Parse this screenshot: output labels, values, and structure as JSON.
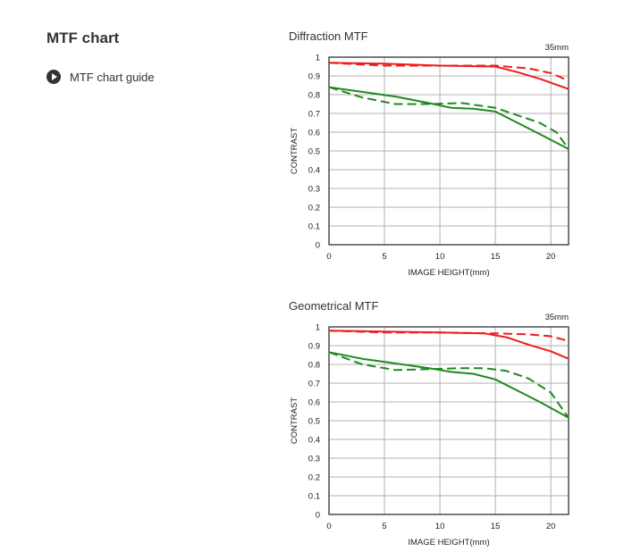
{
  "page": {
    "heading": "MTF chart",
    "guide_link_label": "MTF chart guide",
    "guide_icon": "play-circle-icon"
  },
  "colors": {
    "red_series": "#ee1c1c",
    "green_series": "#1e8a1e",
    "grid": "#b0b0b0",
    "frame": "#222222"
  },
  "chart_data": [
    {
      "type": "line",
      "title": "Diffraction MTF",
      "focal_length_label": "35mm",
      "xlabel": "IMAGE HEIGHT(mm)",
      "ylabel": "CONTRAST",
      "xlim": [
        0,
        21.6
      ],
      "ylim": [
        0,
        1
      ],
      "x_ticks": [
        "0",
        "5",
        "10",
        "15",
        "20"
      ],
      "y_ticks": [
        "0",
        "0.1",
        "0.2",
        "0.3",
        "0.4",
        "0.5",
        "0.6",
        "0.7",
        "0.8",
        "0.9",
        "1"
      ],
      "grid": true,
      "series": [
        {
          "color": "red",
          "style": "solid",
          "points": [
            [
              0,
              0.97
            ],
            [
              5,
              0.965
            ],
            [
              10,
              0.955
            ],
            [
              15,
              0.95
            ],
            [
              17,
              0.92
            ],
            [
              19,
              0.885
            ],
            [
              21.6,
              0.83
            ]
          ]
        },
        {
          "color": "red",
          "style": "dashed",
          "points": [
            [
              0,
              0.97
            ],
            [
              5,
              0.955
            ],
            [
              10,
              0.955
            ],
            [
              15,
              0.955
            ],
            [
              18,
              0.94
            ],
            [
              20,
              0.915
            ],
            [
              21.6,
              0.875
            ]
          ]
        },
        {
          "color": "green",
          "style": "solid",
          "points": [
            [
              0,
              0.84
            ],
            [
              3,
              0.815
            ],
            [
              6,
              0.79
            ],
            [
              9,
              0.755
            ],
            [
              11,
              0.73
            ],
            [
              13,
              0.725
            ],
            [
              15,
              0.71
            ],
            [
              17,
              0.65
            ],
            [
              19,
              0.59
            ],
            [
              21.6,
              0.51
            ]
          ]
        },
        {
          "color": "green",
          "style": "dashed",
          "points": [
            [
              0,
              0.84
            ],
            [
              3,
              0.785
            ],
            [
              6,
              0.75
            ],
            [
              9,
              0.75
            ],
            [
              12,
              0.755
            ],
            [
              15,
              0.73
            ],
            [
              17,
              0.69
            ],
            [
              19,
              0.65
            ],
            [
              20.5,
              0.6
            ],
            [
              21.6,
              0.51
            ]
          ]
        }
      ]
    },
    {
      "type": "line",
      "title": "Geometrical MTF",
      "focal_length_label": "35mm",
      "xlabel": "IMAGE HEIGHT(mm)",
      "ylabel": "CONTRAST",
      "xlim": [
        0,
        21.6
      ],
      "ylim": [
        0,
        1
      ],
      "x_ticks": [
        "0",
        "5",
        "10",
        "15",
        "20"
      ],
      "y_ticks": [
        "0",
        "0.1",
        "0.2",
        "0.3",
        "0.4",
        "0.5",
        "0.6",
        "0.7",
        "0.8",
        "0.9",
        "1"
      ],
      "grid": true,
      "series": [
        {
          "color": "red",
          "style": "solid",
          "points": [
            [
              0,
              0.98
            ],
            [
              5,
              0.975
            ],
            [
              10,
              0.97
            ],
            [
              14,
              0.965
            ],
            [
              16,
              0.945
            ],
            [
              18,
              0.905
            ],
            [
              20,
              0.87
            ],
            [
              21.6,
              0.83
            ]
          ]
        },
        {
          "color": "red",
          "style": "dashed",
          "points": [
            [
              0,
              0.98
            ],
            [
              5,
              0.97
            ],
            [
              10,
              0.97
            ],
            [
              15,
              0.965
            ],
            [
              18,
              0.96
            ],
            [
              20,
              0.95
            ],
            [
              21.6,
              0.925
            ]
          ]
        },
        {
          "color": "green",
          "style": "solid",
          "points": [
            [
              0,
              0.865
            ],
            [
              3,
              0.83
            ],
            [
              6,
              0.805
            ],
            [
              9,
              0.78
            ],
            [
              11,
              0.76
            ],
            [
              13,
              0.75
            ],
            [
              15,
              0.72
            ],
            [
              17,
              0.66
            ],
            [
              19,
              0.6
            ],
            [
              21.6,
              0.515
            ]
          ]
        },
        {
          "color": "green",
          "style": "dashed",
          "points": [
            [
              0,
              0.865
            ],
            [
              3,
              0.8
            ],
            [
              6,
              0.77
            ],
            [
              9,
              0.775
            ],
            [
              12,
              0.78
            ],
            [
              14,
              0.78
            ],
            [
              16,
              0.765
            ],
            [
              18,
              0.725
            ],
            [
              20,
              0.65
            ],
            [
              21.6,
              0.515
            ]
          ]
        }
      ]
    }
  ]
}
